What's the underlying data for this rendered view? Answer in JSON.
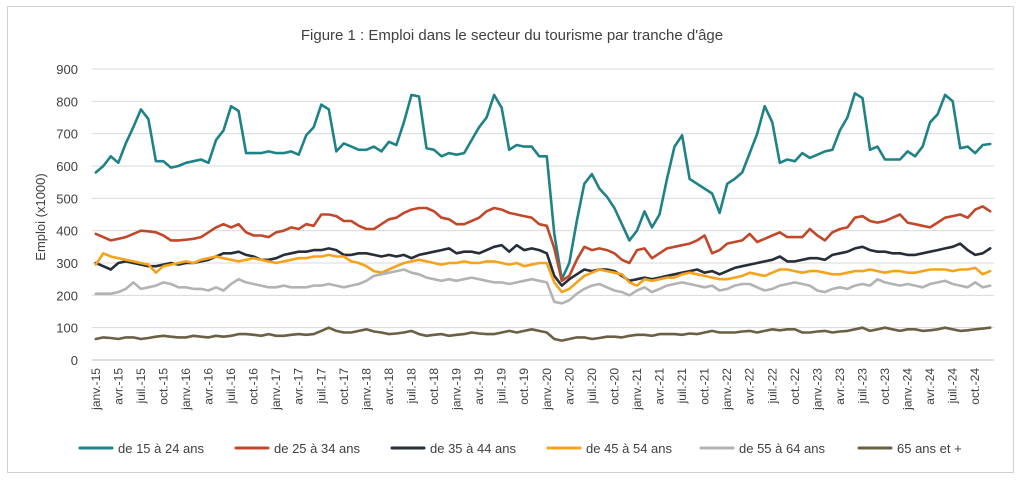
{
  "chart_data": {
    "type": "line",
    "title": "Figure 1 : Emploi dans le secteur du tourisme par tranche d'âge",
    "xlabel": "",
    "ylabel": "Emploi (x1000)",
    "ylim": [
      0,
      900
    ],
    "yticks": [
      0,
      100,
      200,
      300,
      400,
      500,
      600,
      700,
      800,
      900
    ],
    "grid": true,
    "legend_position": "bottom",
    "x_tick_labels": [
      "janv.-15",
      "avr.-15",
      "juil.-15",
      "oct.-15",
      "janv.-16",
      "avr.-16",
      "juil.-16",
      "oct.-16",
      "janv.-17",
      "avr.-17",
      "juil.-17",
      "oct.-17",
      "janv.-18",
      "avr.-18",
      "juil.-18",
      "oct.-18",
      "janv.-19",
      "avr.-19",
      "juil.-19",
      "oct.-19",
      "janv.-20",
      "avr.-20",
      "juil.-20",
      "oct.-20",
      "janv.-21",
      "avr.-21",
      "juil.-21",
      "oct.-21",
      "janv.-22",
      "avr.-22",
      "juil.-22",
      "oct.-22",
      "janv.-23",
      "avr.-23",
      "juil.-23",
      "oct.-23",
      "janv.-24",
      "avr.-24",
      "juil.-24",
      "oct.-24"
    ],
    "x_start": "2015-01",
    "x_end": "2024-12",
    "series": [
      {
        "name": "de 15 à 24 ans",
        "color": "#1f8286",
        "values": [
          580,
          600,
          630,
          610,
          670,
          720,
          775,
          745,
          615,
          615,
          595,
          600,
          610,
          615,
          620,
          610,
          680,
          710,
          785,
          770,
          640,
          640,
          640,
          645,
          640,
          640,
          645,
          635,
          695,
          720,
          790,
          775,
          645,
          670,
          660,
          650,
          650,
          660,
          645,
          675,
          665,
          735,
          820,
          815,
          655,
          650,
          630,
          640,
          635,
          640,
          680,
          720,
          750,
          820,
          780,
          650,
          665,
          660,
          660,
          630,
          630,
          390,
          250,
          300,
          430,
          545,
          575,
          530,
          505,
          470,
          420,
          370,
          400,
          460,
          410,
          450,
          560,
          660,
          695,
          560,
          545,
          530,
          515,
          455,
          545,
          560,
          580,
          640,
          700,
          785,
          735,
          610,
          620,
          615,
          640,
          625,
          635,
          645,
          650,
          710,
          750,
          825,
          810,
          650,
          660,
          620,
          620,
          620,
          645,
          630,
          660,
          735,
          760,
          820,
          800,
          655,
          660,
          640,
          665,
          668
        ]
      },
      {
        "name": "de 25 à 34 ans",
        "color": "#c0492b",
        "values": [
          390,
          380,
          370,
          375,
          380,
          390,
          400,
          398,
          395,
          385,
          370,
          370,
          372,
          375,
          380,
          395,
          410,
          420,
          410,
          420,
          395,
          385,
          385,
          380,
          395,
          400,
          410,
          405,
          420,
          415,
          450,
          450,
          445,
          430,
          430,
          415,
          405,
          405,
          420,
          435,
          440,
          455,
          465,
          470,
          470,
          460,
          440,
          435,
          420,
          420,
          430,
          440,
          460,
          470,
          465,
          455,
          450,
          445,
          440,
          420,
          415,
          345,
          245,
          260,
          310,
          350,
          340,
          345,
          340,
          330,
          310,
          300,
          340,
          345,
          315,
          330,
          345,
          350,
          355,
          360,
          370,
          385,
          330,
          340,
          360,
          365,
          370,
          390,
          365,
          375,
          385,
          395,
          380,
          380,
          380,
          405,
          385,
          370,
          395,
          405,
          410,
          440,
          445,
          430,
          425,
          430,
          440,
          450,
          425,
          420,
          415,
          410,
          425,
          440,
          445,
          450,
          440,
          465,
          475,
          460
        ]
      },
      {
        "name": "de 35 à 44 ans",
        "color": "#262e3a",
        "values": [
          300,
          290,
          280,
          300,
          305,
          300,
          295,
          290,
          290,
          295,
          300,
          295,
          300,
          300,
          305,
          310,
          320,
          330,
          330,
          335,
          325,
          320,
          310,
          310,
          315,
          325,
          330,
          335,
          335,
          340,
          340,
          345,
          340,
          325,
          325,
          330,
          330,
          325,
          320,
          325,
          320,
          325,
          315,
          325,
          330,
          335,
          340,
          345,
          330,
          335,
          335,
          330,
          340,
          350,
          355,
          335,
          355,
          340,
          345,
          340,
          330,
          260,
          230,
          250,
          265,
          280,
          275,
          280,
          280,
          275,
          260,
          245,
          250,
          255,
          250,
          255,
          260,
          265,
          270,
          275,
          280,
          270,
          275,
          265,
          275,
          285,
          290,
          295,
          300,
          305,
          310,
          320,
          305,
          305,
          310,
          315,
          315,
          310,
          325,
          330,
          335,
          345,
          350,
          340,
          335,
          335,
          330,
          330,
          325,
          325,
          330,
          335,
          340,
          345,
          350,
          360,
          340,
          325,
          330,
          345
        ]
      },
      {
        "name": "de 45 à 54 ans",
        "color": "#f5a21c",
        "values": [
          295,
          330,
          320,
          315,
          310,
          305,
          300,
          295,
          270,
          290,
          295,
          300,
          305,
          300,
          310,
          315,
          320,
          315,
          310,
          305,
          310,
          315,
          310,
          305,
          300,
          305,
          310,
          315,
          315,
          320,
          320,
          325,
          320,
          320,
          305,
          300,
          290,
          275,
          270,
          280,
          290,
          300,
          305,
          310,
          305,
          300,
          295,
          300,
          300,
          305,
          300,
          300,
          305,
          305,
          300,
          295,
          300,
          290,
          295,
          300,
          300,
          240,
          210,
          220,
          240,
          260,
          270,
          280,
          275,
          270,
          265,
          240,
          230,
          250,
          245,
          250,
          255,
          255,
          265,
          270,
          265,
          260,
          255,
          250,
          250,
          255,
          260,
          270,
          265,
          260,
          270,
          280,
          280,
          275,
          270,
          275,
          275,
          270,
          265,
          265,
          270,
          275,
          275,
          280,
          275,
          270,
          275,
          275,
          270,
          270,
          275,
          280,
          280,
          280,
          275,
          280,
          280,
          285,
          265,
          275
        ]
      },
      {
        "name": "de 55 à 64 ans",
        "color": "#b3b3b3",
        "values": [
          205,
          205,
          205,
          210,
          220,
          240,
          220,
          225,
          230,
          240,
          235,
          225,
          225,
          220,
          220,
          215,
          225,
          215,
          235,
          250,
          240,
          235,
          230,
          225,
          225,
          230,
          225,
          225,
          225,
          230,
          230,
          235,
          230,
          225,
          230,
          235,
          245,
          260,
          265,
          270,
          275,
          280,
          270,
          265,
          255,
          250,
          245,
          250,
          245,
          250,
          255,
          250,
          245,
          240,
          240,
          235,
          240,
          245,
          250,
          245,
          240,
          180,
          175,
          185,
          205,
          220,
          230,
          235,
          225,
          215,
          210,
          200,
          215,
          225,
          210,
          220,
          230,
          235,
          240,
          235,
          230,
          225,
          230,
          215,
          220,
          230,
          235,
          235,
          225,
          215,
          220,
          230,
          235,
          240,
          235,
          230,
          215,
          210,
          220,
          225,
          220,
          230,
          235,
          230,
          250,
          240,
          235,
          230,
          235,
          230,
          225,
          235,
          240,
          245,
          235,
          230,
          225,
          240,
          225,
          230
        ]
      },
      {
        "name": "65 ans et +",
        "color": "#6b5f45",
        "values": [
          65,
          70,
          68,
          65,
          70,
          70,
          65,
          68,
          72,
          75,
          72,
          70,
          70,
          75,
          72,
          70,
          75,
          72,
          75,
          80,
          80,
          78,
          75,
          80,
          75,
          75,
          78,
          80,
          78,
          80,
          90,
          100,
          90,
          85,
          85,
          90,
          95,
          88,
          85,
          80,
          82,
          85,
          90,
          80,
          75,
          78,
          80,
          75,
          78,
          80,
          85,
          82,
          80,
          80,
          85,
          90,
          85,
          90,
          95,
          90,
          85,
          65,
          60,
          65,
          70,
          70,
          65,
          68,
          72,
          72,
          70,
          75,
          78,
          78,
          75,
          80,
          80,
          80,
          78,
          82,
          80,
          85,
          90,
          85,
          85,
          85,
          88,
          90,
          85,
          90,
          95,
          92,
          95,
          95,
          85,
          85,
          88,
          90,
          85,
          88,
          90,
          95,
          100,
          90,
          95,
          100,
          95,
          90,
          95,
          95,
          90,
          92,
          95,
          100,
          95,
          90,
          92,
          95,
          97,
          100
        ]
      }
    ]
  }
}
